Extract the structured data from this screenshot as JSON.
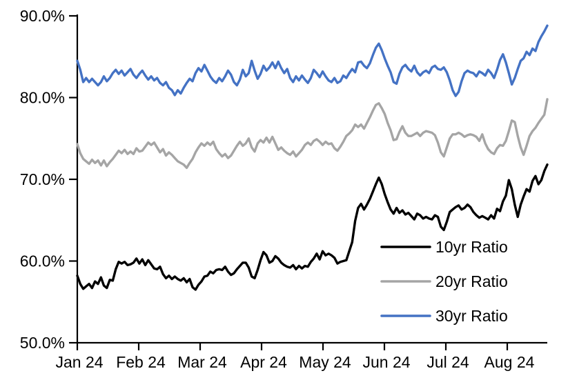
{
  "chart_data": {
    "type": "line",
    "title": "",
    "xlabel": "",
    "ylabel": "",
    "x_tick_labels": [
      "Jan 24",
      "Feb 24",
      "Mar 24",
      "Apr 24",
      "May 24",
      "Jun 24",
      "Jul 24",
      "Aug 24"
    ],
    "y_ticks": [
      50,
      60,
      70,
      80,
      90
    ],
    "y_tick_labels": [
      "50.0%",
      "60.0%",
      "70.0%",
      "80.0%",
      "90.0%"
    ],
    "ylim": [
      50,
      90
    ],
    "grid": false,
    "legend_position": "inside-right-lower",
    "axis_color": "#000000",
    "series": [
      {
        "name": "10yr Ratio",
        "color": "#000000",
        "values": [
          58.2,
          57.2,
          56.6,
          56.9,
          57.2,
          56.7,
          57.5,
          57.2,
          58.0,
          57.0,
          56.7,
          57.7,
          57.6,
          59.0,
          59.9,
          59.7,
          59.9,
          59.5,
          59.6,
          59.8,
          60.3,
          59.7,
          60.2,
          59.5,
          60.1,
          59.6,
          59.1,
          59.0,
          59.3,
          58.4,
          57.9,
          58.2,
          57.8,
          58.1,
          57.8,
          57.6,
          57.9,
          57.4,
          57.8,
          56.8,
          56.5,
          57.1,
          57.5,
          58.1,
          58.2,
          58.7,
          58.5,
          58.9,
          59.0,
          58.9,
          59.3,
          58.7,
          58.3,
          58.5,
          59.0,
          59.4,
          59.8,
          59.8,
          59.2,
          58.1,
          57.9,
          58.9,
          60.1,
          61.1,
          60.7,
          59.8,
          60.0,
          60.6,
          60.3,
          59.8,
          59.5,
          59.3,
          59.2,
          59.5,
          59.0,
          59.4,
          59.1,
          59.4,
          59.3,
          59.9,
          60.3,
          60.9,
          60.2,
          61.2,
          60.7,
          60.9,
          60.7,
          60.4,
          59.7,
          59.9,
          60.0,
          60.1,
          61.2,
          62.3,
          64.9,
          66.5,
          67.0,
          66.3,
          66.9,
          67.6,
          68.5,
          69.4,
          70.2,
          69.4,
          68.2,
          67.2,
          66.3,
          65.8,
          66.5,
          65.9,
          66.2,
          65.7,
          65.9,
          65.5,
          65.1,
          65.8,
          65.6,
          65.2,
          65.4,
          65.2,
          65.1,
          65.6,
          65.4,
          64.2,
          63.8,
          64.8,
          66.0,
          66.3,
          66.6,
          66.8,
          66.3,
          66.5,
          66.9,
          66.6,
          66.0,
          65.6,
          65.3,
          65.5,
          65.3,
          65.1,
          65.6,
          65.2,
          66.4,
          66.1,
          67.3,
          68.0,
          69.9,
          68.8,
          66.9,
          65.4,
          66.9,
          67.9,
          68.8,
          68.5,
          69.8,
          70.4,
          69.4,
          69.9,
          71.0,
          71.8
        ]
      },
      {
        "name": "20yr Ratio",
        "color": "#A5A5A5",
        "values": [
          74.3,
          73.2,
          72.5,
          72.2,
          71.9,
          72.4,
          72.0,
          72.3,
          71.7,
          72.3,
          71.6,
          72.1,
          72.5,
          73.0,
          73.5,
          73.2,
          73.6,
          73.1,
          73.4,
          73.1,
          73.8,
          73.4,
          73.5,
          74.0,
          74.5,
          74.2,
          74.5,
          73.9,
          73.3,
          73.7,
          72.9,
          73.3,
          73.0,
          72.6,
          72.2,
          72.0,
          71.8,
          71.4,
          72.0,
          72.5,
          73.3,
          73.9,
          74.4,
          74.1,
          74.5,
          74.2,
          74.6,
          73.7,
          73.2,
          72.8,
          73.1,
          72.6,
          72.9,
          73.5,
          74.1,
          74.6,
          74.1,
          74.4,
          75.0,
          73.9,
          73.4,
          74.4,
          74.8,
          74.5,
          75.1,
          74.5,
          75.2,
          74.4,
          73.6,
          73.9,
          73.5,
          73.2,
          73.0,
          73.4,
          72.8,
          73.2,
          73.6,
          74.2,
          74.5,
          74.2,
          74.7,
          74.9,
          74.6,
          74.2,
          74.6,
          74.3,
          74.4,
          73.8,
          73.5,
          74.0,
          74.6,
          75.3,
          75.6,
          76.0,
          76.7,
          76.4,
          76.7,
          76.2,
          76.9,
          77.6,
          78.4,
          79.1,
          79.3,
          78.7,
          78.0,
          76.9,
          76.0,
          74.8,
          74.9,
          75.8,
          76.5,
          75.7,
          75.3,
          75.3,
          75.5,
          75.7,
          75.3,
          75.7,
          75.9,
          75.8,
          75.7,
          75.4,
          74.5,
          73.3,
          72.8,
          73.9,
          75.0,
          75.5,
          75.5,
          75.7,
          75.5,
          75.2,
          75.4,
          75.5,
          75.4,
          75.2,
          74.7,
          75.5,
          74.4,
          73.7,
          73.3,
          73.1,
          73.8,
          74.2,
          74.1,
          74.7,
          75.9,
          77.2,
          77.0,
          75.3,
          73.9,
          73.0,
          74.1,
          75.3,
          75.9,
          76.3,
          76.9,
          77.4,
          77.9,
          79.8
        ]
      },
      {
        "name": "30yr Ratio",
        "color": "#4472C4",
        "values": [
          84.5,
          83.4,
          81.9,
          82.4,
          81.9,
          82.3,
          81.9,
          81.5,
          81.9,
          82.6,
          82.0,
          82.4,
          83.0,
          83.4,
          82.9,
          83.3,
          82.7,
          83.1,
          83.5,
          82.8,
          82.4,
          82.9,
          83.3,
          82.7,
          82.2,
          82.6,
          82.1,
          82.4,
          81.8,
          81.5,
          81.9,
          81.2,
          80.9,
          80.3,
          80.9,
          80.5,
          81.2,
          81.8,
          82.3,
          82.0,
          83.0,
          83.6,
          83.2,
          84.0,
          83.3,
          82.6,
          82.1,
          81.8,
          82.4,
          82.0,
          82.6,
          83.3,
          82.8,
          81.9,
          81.5,
          82.2,
          83.4,
          82.6,
          83.0,
          84.5,
          83.3,
          82.3,
          82.9,
          83.9,
          83.3,
          83.7,
          84.3,
          83.6,
          84.4,
          83.6,
          83.0,
          83.5,
          82.4,
          81.9,
          82.6,
          82.1,
          82.7,
          82.2,
          81.8,
          82.4,
          83.4,
          83.0,
          82.5,
          83.2,
          82.6,
          82.1,
          81.9,
          82.4,
          81.8,
          82.0,
          82.7,
          82.4,
          83.0,
          83.5,
          83.1,
          84.3,
          84.4,
          83.9,
          83.6,
          84.2,
          85.2,
          86.1,
          86.6,
          85.8,
          84.8,
          83.9,
          83.1,
          81.9,
          81.7,
          82.9,
          83.7,
          84.0,
          83.5,
          83.2,
          83.9,
          83.1,
          82.7,
          83.1,
          83.3,
          83.0,
          83.7,
          83.9,
          83.5,
          83.4,
          83.7,
          83.1,
          82.1,
          80.9,
          80.2,
          80.7,
          82.0,
          83.0,
          83.3,
          83.1,
          83.0,
          82.6,
          83.2,
          83.0,
          82.7,
          83.4,
          83.0,
          82.4,
          83.4,
          84.6,
          85.3,
          84.3,
          83.0,
          81.6,
          82.4,
          83.5,
          84.5,
          84.8,
          85.6,
          85.2,
          86.0,
          85.7,
          86.8,
          87.5,
          88.1,
          88.8
        ]
      }
    ]
  }
}
